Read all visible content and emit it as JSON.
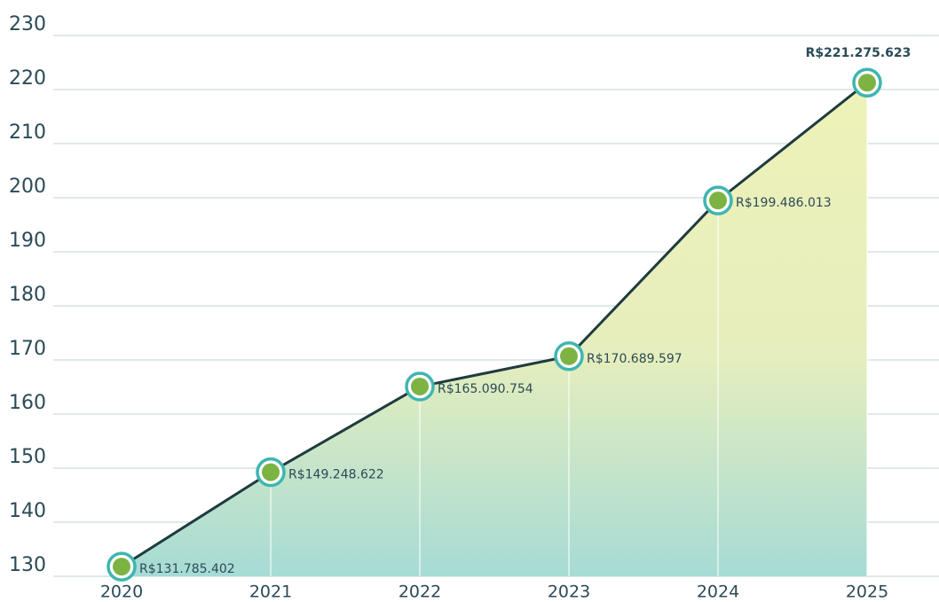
{
  "chart_data": {
    "type": "line",
    "categories": [
      "2020",
      "2021",
      "2022",
      "2023",
      "2024",
      "2025"
    ],
    "values": [
      131.785402,
      149.248622,
      165.090754,
      170.689597,
      199.486013,
      221.275623
    ],
    "value_labels": [
      "R$131.785.402",
      "R$149.248.622",
      "R$165.090.754",
      "R$170.689.597",
      "R$199.486.013",
      "R$221.275.623"
    ],
    "color": "#1f3b3f",
    "marker_color": "#7cb342",
    "ylim": [
      130,
      230
    ],
    "yticks": [
      130,
      140,
      150,
      160,
      170,
      180,
      190,
      200,
      210,
      220,
      230
    ],
    "grid": true
  }
}
